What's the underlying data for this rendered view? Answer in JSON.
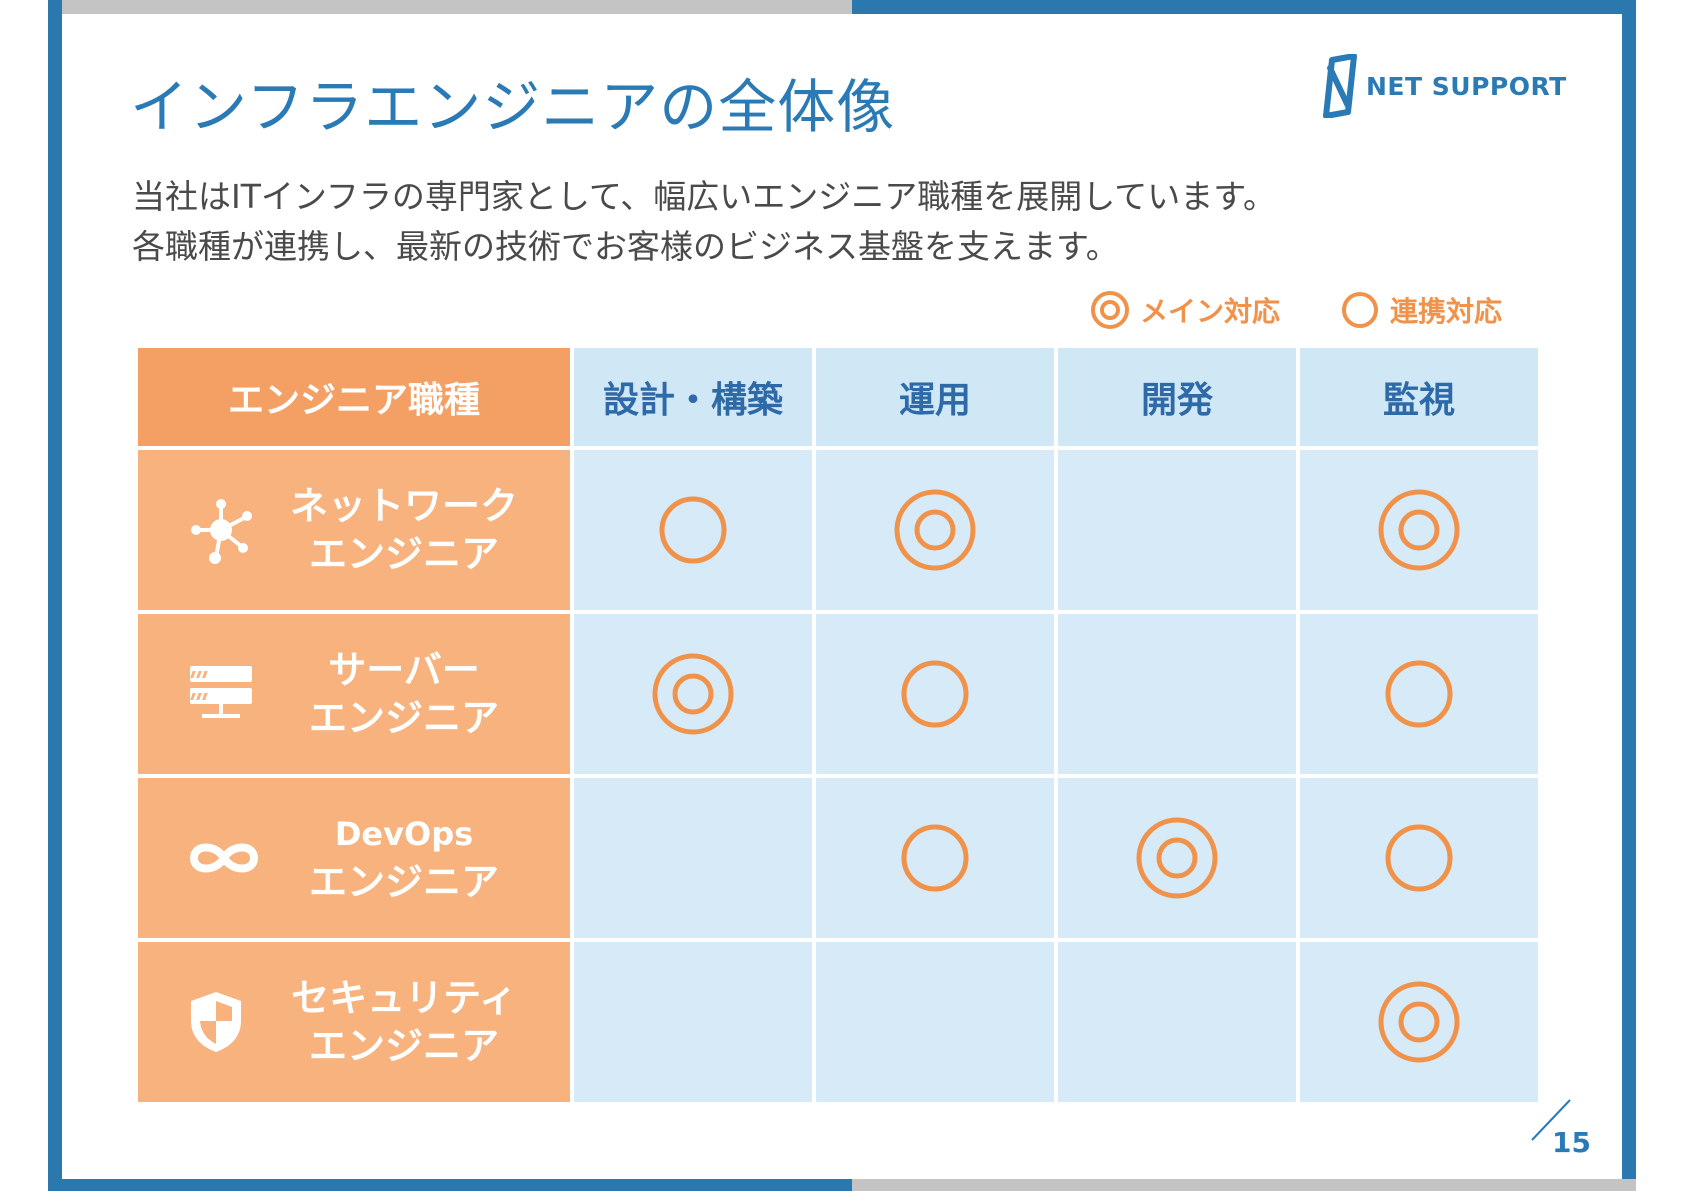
{
  "slide": {
    "title": "インフラエンジニアの全体像",
    "logo_text": "NET SUPPORT",
    "description": [
      "当社はITインフラの専門家として、幅広いエンジニア職種を展開しています。",
      "各職種が連携し、最新の技術でお客様のビジネス基盤を支えます。"
    ],
    "legend": {
      "main": "メイン対応",
      "support": "連携対応"
    },
    "page_number": "15"
  },
  "colors": {
    "frame_blue": "#2a78ad",
    "title_blue": "#2a7ab5",
    "header_orange": "#f4a065",
    "role_orange": "#f7b27e",
    "header_blue": "#d0e7f6",
    "cell_blue": "#d6eaf7",
    "mark_orange": "#f0924a"
  },
  "table": {
    "role_header": "エンジニア職種",
    "columns": [
      "設計・構築",
      "運用",
      "開発",
      "監視"
    ],
    "rows": [
      {
        "icon": "network-icon",
        "label_line1": "ネットワーク",
        "label_line2": "エンジニア",
        "marks": [
          "support",
          "main",
          "",
          "main"
        ]
      },
      {
        "icon": "server-icon",
        "label_line1": "サーバー",
        "label_line2": "エンジニア",
        "marks": [
          "main",
          "support",
          "",
          "support"
        ]
      },
      {
        "icon": "infinity-icon",
        "label_line1": "DevOps",
        "label_line2": "エンジニア",
        "marks": [
          "",
          "support",
          "main",
          "support"
        ]
      },
      {
        "icon": "shield-icon",
        "label_line1": "セキュリティ",
        "label_line2": "エンジニア",
        "marks": [
          "",
          "",
          "",
          "main"
        ]
      }
    ]
  }
}
